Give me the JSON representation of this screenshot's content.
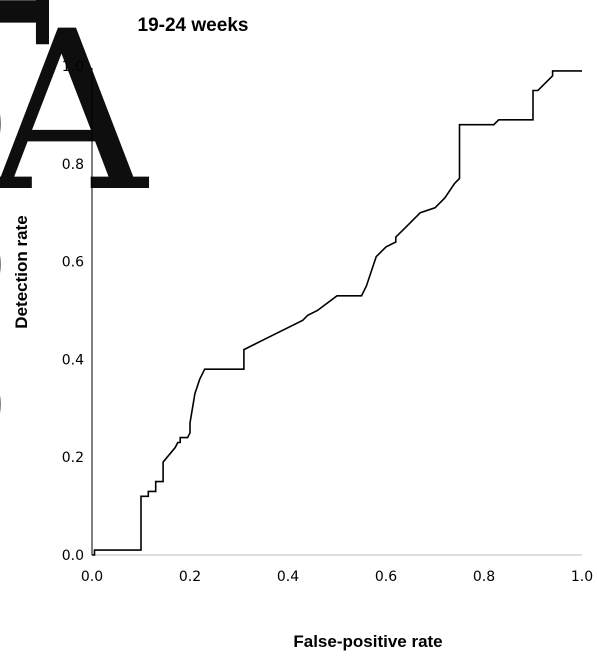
{
  "chart_data": {
    "type": "line",
    "title": "19-24 weeks",
    "xlabel": "False-positive rate",
    "ylabel": "Detection rate",
    "xlim": [
      0.0,
      1.0
    ],
    "ylim": [
      0.0,
      1.0
    ],
    "xticks": [
      "0.0",
      "0.2",
      "0.4",
      "0.6",
      "0.8",
      "1.0"
    ],
    "yticks": [
      "0.0",
      "0.2",
      "0.4",
      "0.6",
      "0.8",
      "1.0"
    ],
    "grid": false,
    "series": [
      {
        "x": [
          0.0,
          0.005,
          0.005,
          0.1,
          0.1,
          0.115,
          0.115,
          0.13,
          0.13,
          0.145,
          0.145,
          0.17,
          0.175,
          0.18,
          0.18,
          0.195,
          0.2,
          0.2,
          0.21,
          0.22,
          0.23,
          0.31,
          0.31,
          0.35,
          0.43,
          0.44,
          0.46,
          0.5,
          0.55,
          0.56,
          0.58,
          0.6,
          0.62,
          0.62,
          0.64,
          0.67,
          0.7,
          0.72,
          0.74,
          0.75,
          0.75,
          0.78,
          0.82,
          0.83,
          0.9,
          0.9,
          0.91,
          0.92,
          0.93,
          0.94,
          0.94,
          0.97,
          1.0
        ],
        "y": [
          0.0,
          0.0,
          0.01,
          0.01,
          0.12,
          0.12,
          0.13,
          0.13,
          0.15,
          0.15,
          0.19,
          0.22,
          0.23,
          0.23,
          0.24,
          0.24,
          0.25,
          0.27,
          0.33,
          0.36,
          0.38,
          0.38,
          0.42,
          0.44,
          0.48,
          0.49,
          0.5,
          0.53,
          0.53,
          0.55,
          0.61,
          0.63,
          0.64,
          0.65,
          0.67,
          0.7,
          0.71,
          0.73,
          0.76,
          0.77,
          0.88,
          0.88,
          0.88,
          0.89,
          0.89,
          0.95,
          0.95,
          0.96,
          0.97,
          0.98,
          0.99,
          0.99,
          0.99
        ]
      }
    ]
  },
  "watermark": {
    "text": "Accepted A"
  }
}
